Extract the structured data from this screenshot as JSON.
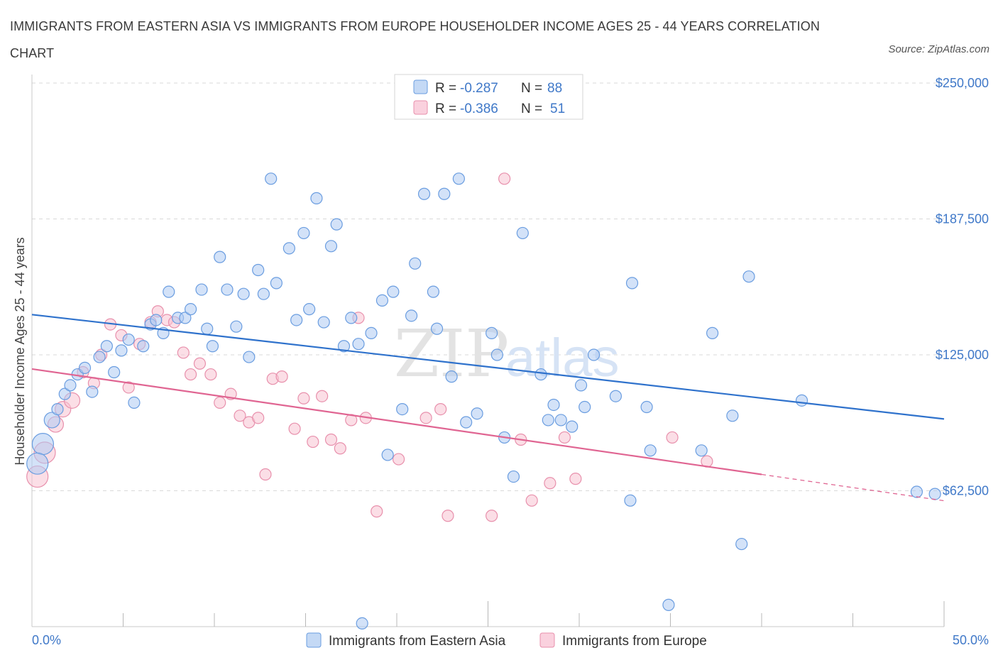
{
  "header": {
    "title": "IMMIGRANTS FROM EASTERN ASIA VS IMMIGRANTS FROM EUROPE HOUSEHOLDER INCOME AGES 25 - 44 YEARS CORRELATION CHART",
    "source": "Source: ZipAtlas.com"
  },
  "colors": {
    "blue_fill": "#aecbf2",
    "blue_stroke": "#6a9de0",
    "blue_line": "#2f72cc",
    "pink_fill": "#f7c2d2",
    "pink_stroke": "#e890ac",
    "pink_line": "#e06592",
    "grid": "#d9d9d9",
    "axis_text": "#3f78c8"
  },
  "watermark": {
    "part1": "ZIP",
    "part2": "atlas"
  },
  "chart_data": {
    "type": "scatter",
    "title": "IMMIGRANTS FROM EASTERN ASIA VS IMMIGRANTS FROM EUROPE HOUSEHOLDER INCOME AGES 25 - 44 YEARS CORRELATION CHART",
    "xlabel": "",
    "ylabel": "Householder Income Ages 25 - 44 years",
    "xlim": [
      0,
      50
    ],
    "ylim": [
      0,
      250000
    ],
    "x_tick_labels": [
      "0.0%",
      "50.0%"
    ],
    "y_tick_values": [
      62500,
      125000,
      187500,
      250000
    ],
    "y_tick_labels": [
      "$62,500",
      "$125,000",
      "$187,500",
      "$250,000"
    ],
    "grid": true,
    "legend": {
      "position": "top-center",
      "entries": [
        {
          "r_label": "R = ",
          "r_value": "-0.287",
          "n_label": "N = ",
          "n_value": "88"
        },
        {
          "r_label": "R = ",
          "r_value": "-0.386",
          "n_label": "N = ",
          "n_value": "51"
        }
      ]
    },
    "series": [
      {
        "name": "Immigrants from Eastern Asia",
        "color": "blue",
        "trend": {
          "x": [
            0,
            50
          ],
          "y": [
            143500,
            95500
          ]
        },
        "points": [
          {
            "x": 0.6,
            "y": 84000,
            "s": 3
          },
          {
            "x": 1.1,
            "y": 95000,
            "s": 2
          },
          {
            "x": 1.4,
            "y": 100000,
            "s": 1
          },
          {
            "x": 1.8,
            "y": 107000,
            "s": 1
          },
          {
            "x": 2.1,
            "y": 111000,
            "s": 1
          },
          {
            "x": 2.5,
            "y": 116000,
            "s": 1
          },
          {
            "x": 2.9,
            "y": 119000,
            "s": 1
          },
          {
            "x": 3.3,
            "y": 108000,
            "s": 1
          },
          {
            "x": 3.7,
            "y": 124000,
            "s": 1
          },
          {
            "x": 4.1,
            "y": 129000,
            "s": 1
          },
          {
            "x": 4.5,
            "y": 117000,
            "s": 1
          },
          {
            "x": 4.9,
            "y": 127000,
            "s": 1
          },
          {
            "x": 5.3,
            "y": 132000,
            "s": 1
          },
          {
            "x": 5.6,
            "y": 103000,
            "s": 1
          },
          {
            "x": 6.1,
            "y": 129000,
            "s": 1
          },
          {
            "x": 6.5,
            "y": 139000,
            "s": 1
          },
          {
            "x": 6.8,
            "y": 141000,
            "s": 1
          },
          {
            "x": 7.2,
            "y": 135000,
            "s": 1
          },
          {
            "x": 7.5,
            "y": 154000,
            "s": 1
          },
          {
            "x": 8.0,
            "y": 142000,
            "s": 1
          },
          {
            "x": 8.4,
            "y": 142000,
            "s": 1
          },
          {
            "x": 8.7,
            "y": 146000,
            "s": 1
          },
          {
            "x": 9.3,
            "y": 155000,
            "s": 1
          },
          {
            "x": 9.6,
            "y": 137000,
            "s": 1
          },
          {
            "x": 9.9,
            "y": 129000,
            "s": 1
          },
          {
            "x": 10.3,
            "y": 170000,
            "s": 1
          },
          {
            "x": 10.7,
            "y": 155000,
            "s": 1
          },
          {
            "x": 11.2,
            "y": 138000,
            "s": 1
          },
          {
            "x": 11.6,
            "y": 153000,
            "s": 1
          },
          {
            "x": 11.9,
            "y": 124000,
            "s": 1
          },
          {
            "x": 12.4,
            "y": 164000,
            "s": 1
          },
          {
            "x": 12.7,
            "y": 153000,
            "s": 1
          },
          {
            "x": 13.1,
            "y": 206000,
            "s": 1
          },
          {
            "x": 13.4,
            "y": 158000,
            "s": 1
          },
          {
            "x": 14.1,
            "y": 174000,
            "s": 1
          },
          {
            "x": 14.5,
            "y": 141000,
            "s": 1
          },
          {
            "x": 14.9,
            "y": 181000,
            "s": 1
          },
          {
            "x": 15.2,
            "y": 146000,
            "s": 1
          },
          {
            "x": 15.6,
            "y": 197000,
            "s": 1
          },
          {
            "x": 16.0,
            "y": 140000,
            "s": 1
          },
          {
            "x": 16.4,
            "y": 175000,
            "s": 1
          },
          {
            "x": 16.7,
            "y": 185000,
            "s": 1
          },
          {
            "x": 17.1,
            "y": 129000,
            "s": 1
          },
          {
            "x": 17.5,
            "y": 142000,
            "s": 1
          },
          {
            "x": 17.9,
            "y": 130000,
            "s": 1
          },
          {
            "x": 18.1,
            "y": 1500,
            "s": 1
          },
          {
            "x": 18.6,
            "y": 135000,
            "s": 1
          },
          {
            "x": 19.2,
            "y": 150000,
            "s": 1
          },
          {
            "x": 19.5,
            "y": 79000,
            "s": 1
          },
          {
            "x": 19.8,
            "y": 154000,
            "s": 1
          },
          {
            "x": 20.3,
            "y": 100000,
            "s": 1
          },
          {
            "x": 20.8,
            "y": 143000,
            "s": 1
          },
          {
            "x": 21.0,
            "y": 167000,
            "s": 1
          },
          {
            "x": 21.5,
            "y": 199000,
            "s": 1
          },
          {
            "x": 22.0,
            "y": 154000,
            "s": 1
          },
          {
            "x": 22.2,
            "y": 137000,
            "s": 1
          },
          {
            "x": 22.6,
            "y": 199000,
            "s": 1
          },
          {
            "x": 23.0,
            "y": 115000,
            "s": 1
          },
          {
            "x": 23.4,
            "y": 206000,
            "s": 1
          },
          {
            "x": 23.8,
            "y": 94000,
            "s": 1
          },
          {
            "x": 24.4,
            "y": 98000,
            "s": 1
          },
          {
            "x": 25.2,
            "y": 135000,
            "s": 1
          },
          {
            "x": 25.5,
            "y": 125000,
            "s": 1
          },
          {
            "x": 25.9,
            "y": 87000,
            "s": 1
          },
          {
            "x": 26.4,
            "y": 69000,
            "s": 1
          },
          {
            "x": 26.9,
            "y": 181000,
            "s": 1
          },
          {
            "x": 27.9,
            "y": 116000,
            "s": 1
          },
          {
            "x": 28.3,
            "y": 95000,
            "s": 1
          },
          {
            "x": 28.6,
            "y": 102000,
            "s": 1
          },
          {
            "x": 29.0,
            "y": 95000,
            "s": 1
          },
          {
            "x": 29.6,
            "y": 92000,
            "s": 1
          },
          {
            "x": 30.1,
            "y": 111000,
            "s": 1
          },
          {
            "x": 30.3,
            "y": 101000,
            "s": 1
          },
          {
            "x": 30.8,
            "y": 125000,
            "s": 1
          },
          {
            "x": 32.0,
            "y": 106000,
            "s": 1
          },
          {
            "x": 32.8,
            "y": 58000,
            "s": 1
          },
          {
            "x": 32.9,
            "y": 158000,
            "s": 1
          },
          {
            "x": 33.7,
            "y": 101000,
            "s": 1
          },
          {
            "x": 33.9,
            "y": 81000,
            "s": 1
          },
          {
            "x": 34.9,
            "y": 10000,
            "s": 1
          },
          {
            "x": 36.7,
            "y": 81000,
            "s": 1
          },
          {
            "x": 37.3,
            "y": 135000,
            "s": 1
          },
          {
            "x": 38.4,
            "y": 97000,
            "s": 1
          },
          {
            "x": 38.9,
            "y": 38000,
            "s": 1
          },
          {
            "x": 39.3,
            "y": 161000,
            "s": 1
          },
          {
            "x": 42.2,
            "y": 104000,
            "s": 1
          },
          {
            "x": 48.5,
            "y": 62000,
            "s": 1
          },
          {
            "x": 49.5,
            "y": 61000,
            "s": 1
          },
          {
            "x": 0.3,
            "y": 75000,
            "s": 3
          }
        ]
      },
      {
        "name": "Immigrants from Europe",
        "color": "pink",
        "trend": {
          "x": [
            0,
            40
          ],
          "y": [
            118500,
            70000
          ]
        },
        "trend_extension": {
          "x": [
            40,
            50
          ],
          "y": [
            70000,
            57900
          ]
        },
        "points": [
          {
            "x": 0.3,
            "y": 69000,
            "s": 3
          },
          {
            "x": 0.7,
            "y": 80000,
            "s": 3
          },
          {
            "x": 1.3,
            "y": 93000,
            "s": 2
          },
          {
            "x": 1.7,
            "y": 100000,
            "s": 2
          },
          {
            "x": 2.2,
            "y": 104000,
            "s": 2
          },
          {
            "x": 2.8,
            "y": 117000,
            "s": 1
          },
          {
            "x": 3.4,
            "y": 112000,
            "s": 1
          },
          {
            "x": 3.8,
            "y": 125000,
            "s": 1
          },
          {
            "x": 4.3,
            "y": 139000,
            "s": 1
          },
          {
            "x": 4.9,
            "y": 134000,
            "s": 1
          },
          {
            "x": 5.3,
            "y": 110000,
            "s": 1
          },
          {
            "x": 5.9,
            "y": 130000,
            "s": 1
          },
          {
            "x": 6.5,
            "y": 140000,
            "s": 1
          },
          {
            "x": 6.9,
            "y": 145000,
            "s": 1
          },
          {
            "x": 7.4,
            "y": 141000,
            "s": 1
          },
          {
            "x": 7.8,
            "y": 140000,
            "s": 1
          },
          {
            "x": 8.3,
            "y": 126000,
            "s": 1
          },
          {
            "x": 8.7,
            "y": 116000,
            "s": 1
          },
          {
            "x": 9.2,
            "y": 121000,
            "s": 1
          },
          {
            "x": 9.8,
            "y": 116000,
            "s": 1
          },
          {
            "x": 10.3,
            "y": 103000,
            "s": 1
          },
          {
            "x": 10.9,
            "y": 107000,
            "s": 1
          },
          {
            "x": 11.4,
            "y": 97000,
            "s": 1
          },
          {
            "x": 11.9,
            "y": 94000,
            "s": 1
          },
          {
            "x": 12.4,
            "y": 96000,
            "s": 1
          },
          {
            "x": 12.8,
            "y": 70000,
            "s": 1
          },
          {
            "x": 13.2,
            "y": 114000,
            "s": 1
          },
          {
            "x": 13.7,
            "y": 115000,
            "s": 1
          },
          {
            "x": 14.4,
            "y": 91000,
            "s": 1
          },
          {
            "x": 14.9,
            "y": 105000,
            "s": 1
          },
          {
            "x": 15.4,
            "y": 85000,
            "s": 1
          },
          {
            "x": 15.9,
            "y": 106000,
            "s": 1
          },
          {
            "x": 16.4,
            "y": 86000,
            "s": 1
          },
          {
            "x": 16.9,
            "y": 82000,
            "s": 1
          },
          {
            "x": 17.5,
            "y": 95000,
            "s": 1
          },
          {
            "x": 17.9,
            "y": 142000,
            "s": 1
          },
          {
            "x": 18.3,
            "y": 96000,
            "s": 1
          },
          {
            "x": 18.9,
            "y": 53000,
            "s": 1
          },
          {
            "x": 20.1,
            "y": 77000,
            "s": 1
          },
          {
            "x": 21.6,
            "y": 96000,
            "s": 1
          },
          {
            "x": 22.4,
            "y": 100000,
            "s": 1
          },
          {
            "x": 22.8,
            "y": 51000,
            "s": 1
          },
          {
            "x": 25.2,
            "y": 51000,
            "s": 1
          },
          {
            "x": 25.9,
            "y": 206000,
            "s": 1
          },
          {
            "x": 26.8,
            "y": 86000,
            "s": 1
          },
          {
            "x": 27.4,
            "y": 58000,
            "s": 1
          },
          {
            "x": 28.4,
            "y": 66000,
            "s": 1
          },
          {
            "x": 29.2,
            "y": 87000,
            "s": 1
          },
          {
            "x": 29.8,
            "y": 68000,
            "s": 1
          },
          {
            "x": 35.1,
            "y": 87000,
            "s": 1
          },
          {
            "x": 37.0,
            "y": 76000,
            "s": 1
          }
        ]
      }
    ]
  },
  "bottom_legend": {
    "items": [
      {
        "label": "Immigrants from Eastern Asia"
      },
      {
        "label": "Immigrants from Europe"
      }
    ]
  }
}
